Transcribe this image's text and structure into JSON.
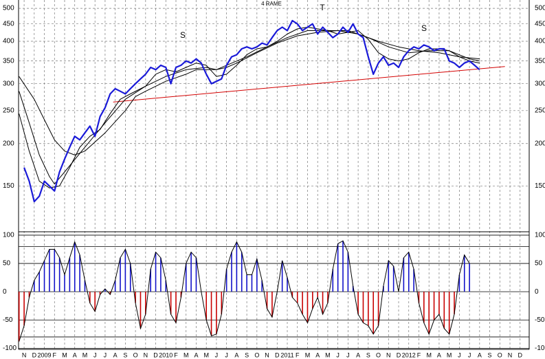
{
  "chart_data": [
    {
      "type": "line",
      "title": "4 RAME",
      "log": true,
      "ylim": [
        110,
        529
      ],
      "yticks": [
        150,
        200,
        250,
        300,
        350,
        400,
        450,
        500
      ],
      "grid": true,
      "xlim": [
        -0.55,
        49.9
      ],
      "annotations": [
        "S",
        "T",
        "S"
      ],
      "series": [
        {
          "color": "#1a1ad8",
          "width": 2.2,
          "x": [
            0,
            0.5,
            1,
            1.5,
            2,
            2.5,
            3,
            3.5,
            4,
            4.5,
            5,
            5.5,
            6,
            6.5,
            7,
            7.5,
            8,
            8.5,
            9,
            9.5,
            10,
            10.5,
            11,
            11.5,
            12,
            12.5,
            13,
            13.5,
            14,
            14.5,
            15,
            15.5,
            16,
            16.5,
            17,
            17.5,
            18,
            18.5,
            19,
            19.5,
            20,
            20.5,
            21,
            21.5,
            22,
            22.5,
            23,
            23.5,
            24,
            24.5,
            25,
            25.5,
            26,
            26.5,
            27,
            27.5,
            28,
            28.5,
            29,
            29.5,
            30,
            30.5,
            31,
            31.5,
            32,
            32.5,
            33,
            33.5,
            34,
            34.5,
            35,
            35.5,
            36,
            36.5,
            37,
            37.5,
            38,
            38.5,
            39,
            39.5,
            40,
            40.5,
            41,
            41.5,
            42,
            42.5,
            43,
            43.5,
            44,
            44.5,
            45
          ],
          "values": [
            170,
            155,
            135,
            140,
            155,
            150,
            145,
            165,
            180,
            195,
            210,
            205,
            215,
            225,
            210,
            240,
            255,
            280,
            290,
            285,
            280,
            290,
            300,
            310,
            320,
            335,
            330,
            340,
            335,
            300,
            335,
            340,
            350,
            345,
            355,
            345,
            320,
            300,
            305,
            310,
            340,
            360,
            365,
            380,
            385,
            380,
            385,
            395,
            390,
            410,
            430,
            440,
            430,
            460,
            450,
            430,
            440,
            450,
            420,
            440,
            425,
            410,
            420,
            440,
            425,
            450,
            420,
            410,
            360,
            320,
            345,
            360,
            340,
            345,
            335,
            360,
            375,
            385,
            380,
            390,
            385,
            375,
            380,
            380,
            350,
            345,
            335,
            345,
            350,
            340,
            330
          ]
        },
        {
          "color": "#000000",
          "width": 1,
          "x": [
            -0.5,
            0.5,
            1.5,
            2.5,
            3.5,
            4.5,
            5.5,
            6.5,
            7.5,
            8.5,
            9.5,
            10.5,
            12,
            13,
            14,
            15,
            16,
            17,
            18,
            19,
            20,
            21,
            22,
            23,
            24,
            25,
            26,
            27,
            28,
            29,
            30,
            31,
            32,
            33,
            34,
            35,
            36,
            37,
            38,
            39,
            40,
            41,
            42,
            43,
            44,
            45
          ],
          "values": [
            245,
            190,
            155,
            148,
            150,
            170,
            195,
            210,
            220,
            245,
            270,
            280,
            295,
            320,
            330,
            325,
            335,
            345,
            340,
            315,
            320,
            340,
            365,
            380,
            385,
            400,
            420,
            435,
            440,
            435,
            430,
            420,
            425,
            430,
            405,
            370,
            355,
            350,
            355,
            370,
            380,
            380,
            375,
            360,
            350,
            345
          ]
        },
        {
          "color": "#000000",
          "width": 1,
          "x": [
            -0.5,
            0.5,
            1.5,
            2.5,
            3,
            4,
            6,
            8,
            10,
            12,
            14,
            16,
            18,
            19,
            20,
            22,
            24,
            26,
            28,
            30,
            32,
            34,
            36,
            38,
            40,
            42,
            44,
            45
          ],
          "values": [
            285,
            230,
            185,
            160,
            152,
            165,
            195,
            230,
            270,
            295,
            315,
            330,
            335,
            330,
            340,
            360,
            385,
            410,
            430,
            430,
            430,
            410,
            385,
            370,
            375,
            375,
            355,
            350
          ]
        },
        {
          "color": "#000000",
          "width": 1,
          "x": [
            -0.5,
            1,
            2,
            3,
            4,
            5,
            6,
            8,
            10,
            11,
            12,
            14,
            16,
            17,
            18,
            19,
            20,
            21,
            23,
            25,
            27,
            29,
            31,
            33,
            35,
            37,
            39,
            41,
            43,
            45
          ],
          "values": [
            315,
            270,
            235,
            205,
            190,
            185,
            190,
            215,
            250,
            275,
            285,
            305,
            320,
            330,
            330,
            330,
            335,
            345,
            370,
            395,
            415,
            425,
            430,
            420,
            400,
            385,
            375,
            370,
            360,
            355
          ]
        }
      ],
      "trendline": {
        "color": "#d40000",
        "x": [
          8.8,
          47.5
        ],
        "values": [
          265,
          337
        ]
      }
    },
    {
      "type": "bar",
      "ylim": [
        -102,
        106
      ],
      "yticks": [
        -100,
        -50,
        0,
        50,
        100
      ],
      "levels": [
        80,
        -80
      ],
      "xlim": [
        -0.55,
        49.9
      ],
      "categories": [
        "N",
        "D",
        "2009",
        "F",
        "M",
        "A",
        "M",
        "J",
        "J",
        "A",
        "S",
        "O",
        "N",
        "D",
        "2010",
        "F",
        "M",
        "A",
        "M",
        "J",
        "J",
        "A",
        "S",
        "O",
        "N",
        "D",
        "2011",
        "F",
        "M",
        "A",
        "M",
        "J",
        "J",
        "A",
        "S",
        "O",
        "N",
        "D",
        "2012",
        "F",
        "M",
        "A",
        "M",
        "J",
        "J",
        "A",
        "S",
        "O",
        "N",
        "D"
      ],
      "pos_color": "#1010c8",
      "neg_color": "#c80000",
      "line_color": "#000000",
      "x": [
        -0.5,
        0,
        0.5,
        1,
        1.5,
        2,
        2.5,
        3,
        3.5,
        4,
        4.5,
        5,
        5.5,
        6,
        6.5,
        7,
        7.5,
        8,
        8.5,
        9,
        9.5,
        10,
        10.5,
        11,
        11.5,
        12,
        12.5,
        13,
        13.5,
        14,
        14.5,
        15,
        15.5,
        16,
        16.5,
        17,
        17.5,
        18,
        18.5,
        19,
        19.5,
        20,
        20.5,
        21,
        21.5,
        22,
        22.5,
        23,
        23.5,
        24,
        24.5,
        25,
        25.5,
        26,
        26.5,
        27,
        27.5,
        28,
        28.5,
        29,
        29.5,
        30,
        30.5,
        31,
        31.5,
        32,
        32.5,
        33,
        33.5,
        34,
        34.5,
        35,
        35.5,
        36,
        36.5,
        37,
        37.5,
        38,
        38.5,
        39,
        39.5,
        40,
        40.5,
        41,
        41.5,
        42,
        42.5,
        43,
        43.5,
        44
      ],
      "values": [
        -88,
        -60,
        -10,
        20,
        35,
        55,
        75,
        75,
        60,
        30,
        60,
        88,
        65,
        20,
        -20,
        -35,
        -5,
        5,
        -5,
        20,
        60,
        75,
        50,
        -20,
        -65,
        -40,
        40,
        70,
        60,
        20,
        -40,
        -55,
        -10,
        50,
        70,
        60,
        0,
        -50,
        -78,
        -75,
        -40,
        40,
        70,
        88,
        70,
        30,
        30,
        58,
        20,
        -30,
        -45,
        0,
        55,
        25,
        -10,
        -20,
        -40,
        -55,
        -30,
        -10,
        -40,
        -20,
        40,
        85,
        90,
        70,
        10,
        -40,
        -55,
        -60,
        -75,
        -60,
        10,
        55,
        45,
        0,
        60,
        70,
        40,
        -20,
        -55,
        -75,
        -50,
        -40,
        -65,
        -75,
        -40,
        30,
        65,
        50
      ]
    }
  ]
}
